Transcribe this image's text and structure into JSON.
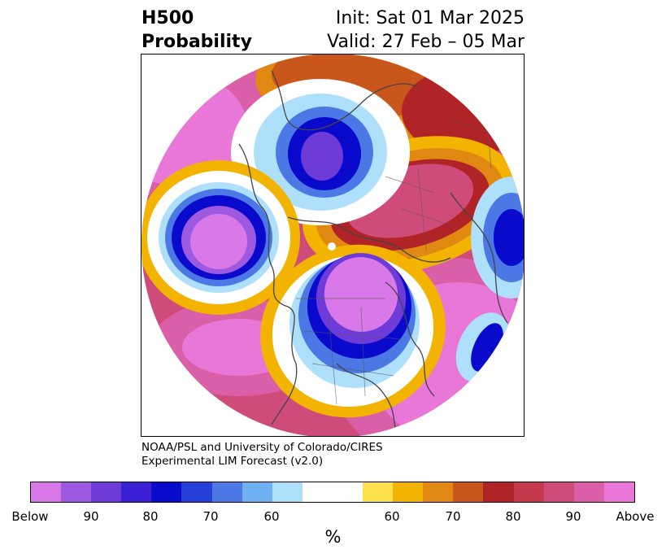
{
  "title": {
    "left_line1": "H500",
    "left_line2": "Probability",
    "right_line1": "Init: Sat 01 Mar 2025",
    "right_line2": "Valid: 27 Feb – 05 Mar"
  },
  "credit": {
    "line1": "NOAA/PSL and University of Colorado/CIRES",
    "line2": "Experimental LIM Forecast (v2.0)"
  },
  "colorbar": {
    "unit": "%",
    "colors": [
      "#d978e8",
      "#9d5ae0",
      "#6e3ad8",
      "#3a1fd4",
      "#0a0acc",
      "#2440d8",
      "#4c78e6",
      "#6fb0f0",
      "#aee0fb",
      "#ffffff",
      "#ffe04d",
      "#f2b400",
      "#e08812",
      "#c9561a",
      "#b02428",
      "#c43a4c",
      "#cf4c7a",
      "#da5fa8",
      "#e877d8"
    ],
    "ticks": [
      "Below",
      "90",
      "80",
      "70",
      "60",
      "60",
      "70",
      "80",
      "90",
      "Above"
    ]
  },
  "map": {
    "projection": "north-polar-stereographic",
    "variable": "H500 probability",
    "features": [
      {
        "name": "gulf-of-alaska-below-center",
        "category": "below",
        "peak_percent": 95
      },
      {
        "name": "north-america-below-center",
        "category": "below",
        "peak_percent": 95
      },
      {
        "name": "arctic-siberia-below-center",
        "category": "below",
        "peak_percent": 90
      },
      {
        "name": "europe-below-center",
        "category": "below",
        "peak_percent": 90
      },
      {
        "name": "north-pacific-above-ridge",
        "category": "above",
        "peak_percent": 95
      },
      {
        "name": "north-atlantic-above-ridge",
        "category": "above",
        "peak_percent": 95
      },
      {
        "name": "greenland-eurasia-above-ridge",
        "category": "above",
        "peak_percent": 90
      }
    ]
  }
}
